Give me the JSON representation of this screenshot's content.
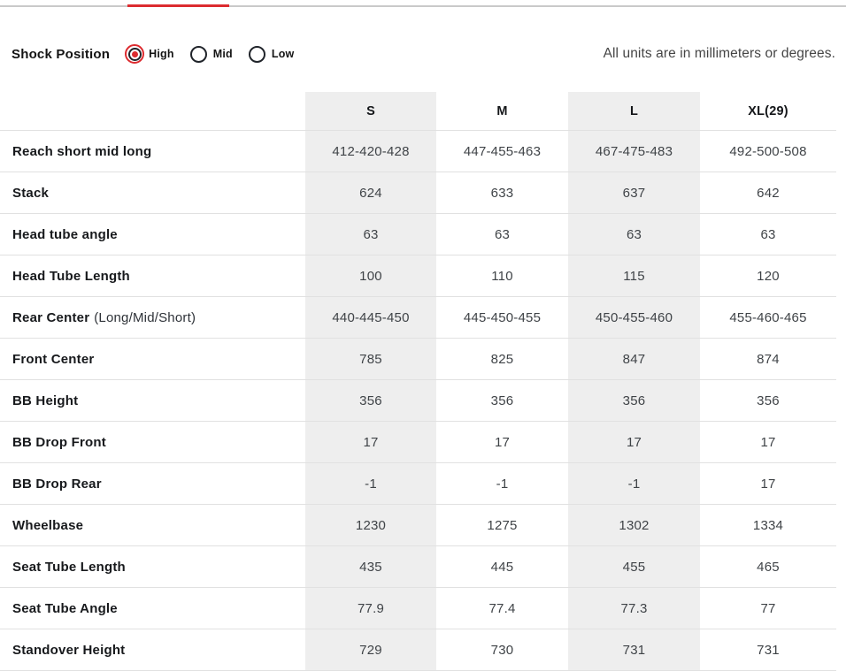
{
  "page": {
    "units_note": "All units are in millimeters or degrees.",
    "accent_red": "#dc2b2f",
    "shaded_column_color": "#eeeeee"
  },
  "shock_position": {
    "label": "Shock Position",
    "options": [
      {
        "label": "High",
        "selected": true
      },
      {
        "label": "Mid",
        "selected": false
      },
      {
        "label": "Low",
        "selected": false
      }
    ]
  },
  "geometry_table": {
    "columns": [
      "S",
      "M",
      "L",
      "XL(29)"
    ],
    "rows": [
      {
        "label": "Reach short mid long",
        "label_note": "",
        "values": [
          "412-420-428",
          "447-455-463",
          "467-475-483",
          "492-500-508"
        ]
      },
      {
        "label": "Stack",
        "label_note": "",
        "values": [
          "624",
          "633",
          "637",
          "642"
        ]
      },
      {
        "label": "Head tube angle",
        "label_note": "",
        "values": [
          "63",
          "63",
          "63",
          "63"
        ]
      },
      {
        "label": "Head Tube Length",
        "label_note": "",
        "values": [
          "100",
          "110",
          "115",
          "120"
        ]
      },
      {
        "label": "Rear Center",
        "label_note": "(Long/Mid/Short)",
        "values": [
          "440-445-450",
          "445-450-455",
          "450-455-460",
          "455-460-465"
        ]
      },
      {
        "label": "Front Center",
        "label_note": "",
        "values": [
          "785",
          "825",
          "847",
          "874"
        ]
      },
      {
        "label": "BB Height",
        "label_note": "",
        "values": [
          "356",
          "356",
          "356",
          "356"
        ]
      },
      {
        "label": "BB Drop Front",
        "label_note": "",
        "values": [
          "17",
          "17",
          "17",
          "17"
        ]
      },
      {
        "label": "BB Drop Rear",
        "label_note": "",
        "values": [
          "-1",
          "-1",
          "-1",
          "17"
        ]
      },
      {
        "label": "Wheelbase",
        "label_note": "",
        "values": [
          "1230",
          "1275",
          "1302",
          "1334"
        ]
      },
      {
        "label": "Seat Tube Length",
        "label_note": "",
        "values": [
          "435",
          "445",
          "455",
          "465"
        ]
      },
      {
        "label": "Seat Tube Angle",
        "label_note": "",
        "values": [
          "77.9",
          "77.4",
          "77.3",
          "77"
        ]
      },
      {
        "label": "Standover Height",
        "label_note": "",
        "values": [
          "729",
          "730",
          "731",
          "731"
        ]
      }
    ]
  }
}
